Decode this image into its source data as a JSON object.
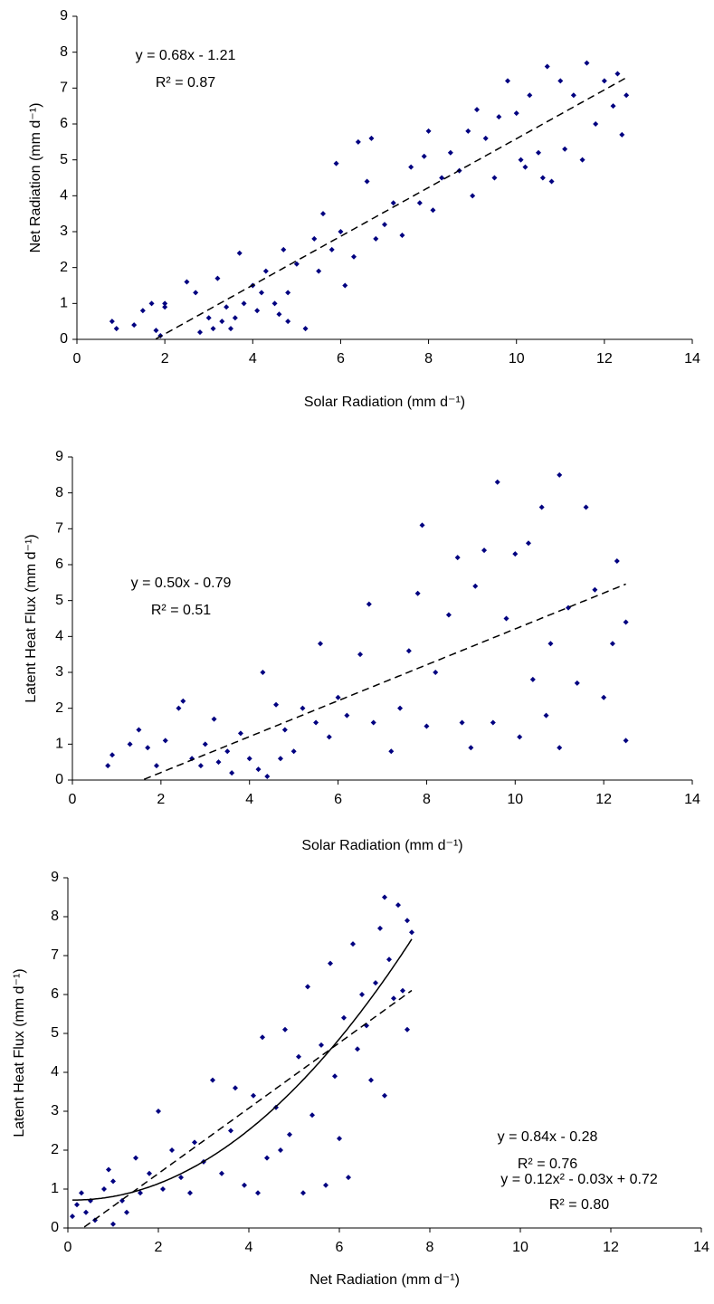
{
  "chart_data": [
    {
      "type": "scatter",
      "x_label": "Solar Radiation (mm d⁻¹)",
      "y_label": "Net Radiation (mm d⁻¹)",
      "color": "#000080",
      "xlim": [
        0,
        14
      ],
      "ylim": [
        0,
        9
      ],
      "xticks": [
        0,
        2,
        4,
        6,
        8,
        10,
        12,
        14
      ],
      "yticks": [
        0,
        1,
        2,
        3,
        4,
        5,
        6,
        7,
        8,
        9
      ],
      "x": [
        0.8,
        0.9,
        1.3,
        1.5,
        1.7,
        1.8,
        1.9,
        2.0,
        2.0,
        2.5,
        2.7,
        2.8,
        3.0,
        3.1,
        3.2,
        3.3,
        3.4,
        3.5,
        3.6,
        3.7,
        3.8,
        4.0,
        4.1,
        4.2,
        4.3,
        4.5,
        4.6,
        4.7,
        4.8,
        4.8,
        5.0,
        5.2,
        5.4,
        5.5,
        5.6,
        5.8,
        5.9,
        6.0,
        6.1,
        6.3,
        6.4,
        6.6,
        6.7,
        6.8,
        7.0,
        7.2,
        7.4,
        7.6,
        7.8,
        7.9,
        8.0,
        8.1,
        8.3,
        8.5,
        8.7,
        8.9,
        9.0,
        9.1,
        9.3,
        9.5,
        9.6,
        9.8,
        10.0,
        10.1,
        10.2,
        10.3,
        10.5,
        10.6,
        10.7,
        10.8,
        11.0,
        11.1,
        11.3,
        11.5,
        11.6,
        11.8,
        12.0,
        12.2,
        12.3,
        12.4,
        12.5
      ],
      "values": [
        0.5,
        0.3,
        0.4,
        0.8,
        1.0,
        0.25,
        0.1,
        0.9,
        1.0,
        1.6,
        1.3,
        0.2,
        0.6,
        0.3,
        1.7,
        0.5,
        0.9,
        0.3,
        0.6,
        2.4,
        1.0,
        1.5,
        0.8,
        1.3,
        1.9,
        1.0,
        0.7,
        2.5,
        1.3,
        0.5,
        2.1,
        0.3,
        2.8,
        1.9,
        3.5,
        2.5,
        4.9,
        3.0,
        1.5,
        2.3,
        5.5,
        4.4,
        5.6,
        2.8,
        3.2,
        3.8,
        2.9,
        4.8,
        3.8,
        5.1,
        5.8,
        3.6,
        4.5,
        5.2,
        4.7,
        5.8,
        4.0,
        6.4,
        5.6,
        4.5,
        6.2,
        7.2,
        6.3,
        5.0,
        4.8,
        6.8,
        5.2,
        4.5,
        7.6,
        4.4,
        7.2,
        5.3,
        6.8,
        5.0,
        7.7,
        6.0,
        7.2,
        6.5,
        7.4,
        5.7,
        6.8
      ],
      "fits": [
        {
          "label": "y = 0.68x - 1.21",
          "r2_label": "R² = 0.87",
          "coefficients": [
            0.68,
            -1.21
          ],
          "style": "dashed"
        }
      ]
    },
    {
      "type": "scatter",
      "x_label": "Solar Radiation (mm d⁻¹)",
      "y_label": "Latent Heat Flux (mm d⁻¹)",
      "color": "#000080",
      "xlim": [
        0,
        14
      ],
      "ylim": [
        0,
        9
      ],
      "xticks": [
        0,
        2,
        4,
        6,
        8,
        10,
        12,
        14
      ],
      "yticks": [
        0,
        1,
        2,
        3,
        4,
        5,
        6,
        7,
        8,
        9
      ],
      "x": [
        0.8,
        0.9,
        1.3,
        1.5,
        1.7,
        1.9,
        2.1,
        2.4,
        2.5,
        2.7,
        2.9,
        3.0,
        3.2,
        3.3,
        3.5,
        3.6,
        3.8,
        4.0,
        4.2,
        4.3,
        4.4,
        4.6,
        4.7,
        4.8,
        5.0,
        5.2,
        5.5,
        5.6,
        5.8,
        6.0,
        6.2,
        6.5,
        6.7,
        6.8,
        7.2,
        7.4,
        7.6,
        7.8,
        7.9,
        8.0,
        8.2,
        8.5,
        8.7,
        8.8,
        9.0,
        9.1,
        9.3,
        9.5,
        9.6,
        9.8,
        10.0,
        10.1,
        10.3,
        10.4,
        10.6,
        10.7,
        10.8,
        11.0,
        11.0,
        11.2,
        11.4,
        11.6,
        11.8,
        12.0,
        12.2,
        12.3,
        12.5,
        12.5
      ],
      "values": [
        0.4,
        0.7,
        1.0,
        1.4,
        0.9,
        0.4,
        1.1,
        2.0,
        2.2,
        0.6,
        0.4,
        1.0,
        1.7,
        0.5,
        0.8,
        0.2,
        1.3,
        0.6,
        0.3,
        3.0,
        0.1,
        2.1,
        0.6,
        1.4,
        0.8,
        2.0,
        1.6,
        3.8,
        1.2,
        2.3,
        1.8,
        3.5,
        4.9,
        1.6,
        0.8,
        2.0,
        3.6,
        5.2,
        7.1,
        1.5,
        3.0,
        4.6,
        6.2,
        1.6,
        0.9,
        5.4,
        6.4,
        1.6,
        8.3,
        4.5,
        6.3,
        1.2,
        6.6,
        2.8,
        7.6,
        1.8,
        3.8,
        8.5,
        0.9,
        4.8,
        2.7,
        7.6,
        5.3,
        2.3,
        3.8,
        6.1,
        1.1,
        4.4
      ],
      "fits": [
        {
          "label": "y = 0.50x - 0.79",
          "r2_label": "R² = 0.51",
          "coefficients": [
            0.5,
            -0.79
          ],
          "style": "dashed"
        }
      ]
    },
    {
      "type": "scatter",
      "x_label": "Net Radiation (mm d⁻¹)",
      "y_label": "Latent Heat Flux (mm d⁻¹)",
      "color": "#000080",
      "xlim": [
        0,
        14
      ],
      "ylim": [
        0,
        9
      ],
      "xticks": [
        0,
        2,
        4,
        6,
        8,
        10,
        12,
        14
      ],
      "yticks": [
        0,
        1,
        2,
        3,
        4,
        5,
        6,
        7,
        8,
        9
      ],
      "x": [
        0.1,
        0.2,
        0.3,
        0.4,
        0.5,
        0.6,
        0.8,
        0.9,
        1.0,
        1.0,
        1.2,
        1.3,
        1.5,
        1.6,
        1.8,
        2.0,
        2.1,
        2.3,
        2.5,
        2.7,
        2.8,
        3.0,
        3.2,
        3.4,
        3.6,
        3.7,
        3.9,
        4.1,
        4.2,
        4.3,
        4.4,
        4.6,
        4.7,
        4.8,
        4.9,
        5.1,
        5.2,
        5.3,
        5.4,
        5.6,
        5.7,
        5.8,
        5.9,
        6.0,
        6.1,
        6.2,
        6.3,
        6.4,
        6.5,
        6.6,
        6.7,
        6.8,
        6.9,
        7.0,
        7.0,
        7.1,
        7.2,
        7.3,
        7.4,
        7.5,
        7.5,
        7.6
      ],
      "values": [
        0.3,
        0.6,
        0.9,
        0.4,
        0.7,
        0.2,
        1.0,
        1.5,
        0.1,
        1.2,
        0.7,
        0.4,
        1.8,
        0.9,
        1.4,
        3.0,
        1.0,
        2.0,
        1.3,
        0.9,
        2.2,
        1.7,
        3.8,
        1.4,
        2.5,
        3.6,
        1.1,
        3.4,
        0.9,
        4.9,
        1.8,
        3.1,
        2.0,
        5.1,
        2.4,
        4.4,
        0.9,
        6.2,
        2.9,
        4.7,
        1.1,
        6.8,
        3.9,
        2.3,
        5.4,
        1.3,
        7.3,
        4.6,
        6.0,
        5.2,
        3.8,
        6.3,
        7.7,
        3.4,
        8.5,
        6.9,
        5.9,
        8.3,
        6.1,
        5.1,
        7.9,
        7.6
      ],
      "fits": [
        {
          "label": "y = 0.84x - 0.28",
          "r2_label": "R² = 0.76",
          "coefficients": [
            0.84,
            -0.28
          ],
          "style": "dashed"
        },
        {
          "label": "y = 0.12x² - 0.03x + 0.72",
          "r2_label": "R² = 0.80",
          "coefficients": [
            0.12,
            -0.03,
            0.72
          ],
          "style": "solid"
        }
      ]
    }
  ]
}
